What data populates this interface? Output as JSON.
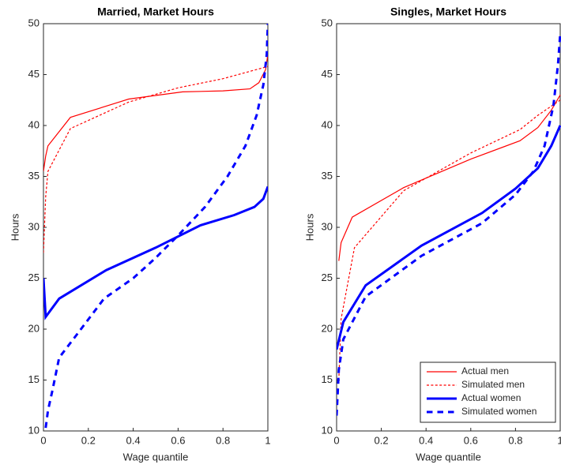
{
  "chart_data": [
    {
      "type": "line",
      "title": "Married, Market Hours",
      "x_label": "Wage quantile",
      "y_label": "Hours",
      "xlim": [
        0,
        1
      ],
      "xticks": [
        0,
        0.2,
        0.4,
        0.6,
        0.8,
        1
      ],
      "ylim": [
        10,
        50
      ],
      "yticks": [
        10,
        15,
        20,
        25,
        30,
        35,
        40,
        45,
        50
      ],
      "series": [
        {
          "color": "#ff0000",
          "dashed": false,
          "width": 1.2,
          "x": [
            0,
            0.01,
            0.02,
            0.12,
            0.38,
            0.62,
            0.8,
            0.92,
            0.96,
            0.99,
            1
          ],
          "values": [
            35.5,
            37,
            38,
            40.8,
            42.6,
            43.3,
            43.4,
            43.6,
            44.2,
            45.5,
            47
          ]
        },
        {
          "color": "#ff0000",
          "dashed": true,
          "width": 1.2,
          "x": [
            0,
            0.01,
            0.02,
            0.12,
            0.38,
            0.6,
            0.8,
            1
          ],
          "values": [
            27.5,
            33,
            35.5,
            39.7,
            42.3,
            43.7,
            44.6,
            45.8
          ]
        },
        {
          "color": "#0000ff",
          "dashed": false,
          "width": 3,
          "x": [
            0,
            0.01,
            0.07,
            0.28,
            0.5,
            0.7,
            0.85,
            0.94,
            0.98,
            1
          ],
          "values": [
            25,
            21.2,
            23,
            25.8,
            28,
            30.2,
            31.2,
            32,
            32.8,
            34
          ]
        },
        {
          "color": "#0000ff",
          "dashed": true,
          "width": 3,
          "x": [
            0.01,
            0.02,
            0.04,
            0.07,
            0.15,
            0.27,
            0.4,
            0.5,
            0.6,
            0.72,
            0.82,
            0.9,
            0.95,
            0.98,
            0.995,
            1
          ],
          "values": [
            10.3,
            12,
            14,
            17.2,
            19.5,
            23,
            25,
            27,
            29.2,
            32,
            35,
            38,
            41,
            44,
            47,
            50
          ]
        }
      ]
    },
    {
      "type": "line",
      "title": "Singles, Market Hours",
      "x_label": "Wage quantile",
      "y_label": "Hours",
      "xlim": [
        0,
        1
      ],
      "xticks": [
        0,
        0.2,
        0.4,
        0.6,
        0.8,
        1
      ],
      "ylim": [
        10,
        50
      ],
      "yticks": [
        10,
        15,
        20,
        25,
        30,
        35,
        40,
        45,
        50
      ],
      "legend": "lower right",
      "series": [
        {
          "name": "Actual men",
          "color": "#ff0000",
          "dashed": false,
          "width": 1.2,
          "x": [
            0.01,
            0.02,
            0.07,
            0.3,
            0.6,
            0.82,
            0.9,
            0.96,
            1
          ],
          "values": [
            26.7,
            28.5,
            31,
            33.9,
            36.7,
            38.5,
            39.8,
            41.5,
            43
          ]
        },
        {
          "name": "Simulated men",
          "color": "#ff0000",
          "dashed": true,
          "width": 1.2,
          "x": [
            0.01,
            0.02,
            0.08,
            0.3,
            0.6,
            0.82,
            0.9,
            1
          ],
          "values": [
            15,
            21,
            28,
            33.6,
            37.3,
            39.6,
            41,
            42.5
          ]
        },
        {
          "name": "Actual women",
          "color": "#0000ff",
          "dashed": false,
          "width": 3,
          "x": [
            0,
            0.03,
            0.13,
            0.38,
            0.65,
            0.8,
            0.9,
            0.96,
            1
          ],
          "values": [
            18,
            20.7,
            24.3,
            28.2,
            31.4,
            33.8,
            35.8,
            38,
            40
          ]
        },
        {
          "name": "Simulated women",
          "color": "#0000ff",
          "dashed": true,
          "width": 3,
          "x": [
            0,
            0.01,
            0.03,
            0.13,
            0.38,
            0.65,
            0.8,
            0.88,
            0.93,
            0.97,
            0.99,
            1
          ],
          "values": [
            11.5,
            16,
            19,
            23.2,
            27.2,
            30.4,
            33.2,
            35.5,
            38,
            42,
            46,
            49
          ]
        }
      ]
    }
  ]
}
